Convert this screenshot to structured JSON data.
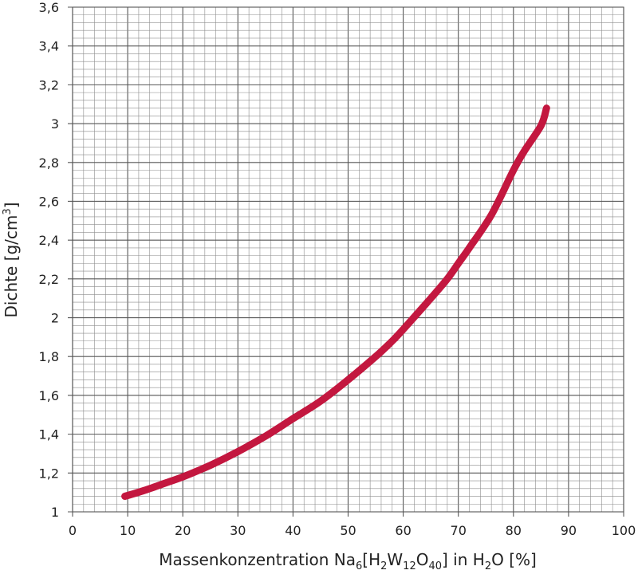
{
  "chart_data": {
    "type": "line",
    "title": "",
    "xlabel": {
      "pre": "Massenkonzentration Na",
      "sub1": "6",
      "mid1": "[H",
      "sub2": "2",
      "mid2": "W",
      "sub3": "12",
      "mid3": "O",
      "sub4": "40",
      "mid4": "] in H",
      "sub5": "2",
      "post": "O [%]"
    },
    "ylabel": {
      "pre": "Dichte [g/cm",
      "sup": "3",
      "post": "]"
    },
    "xlim": [
      0,
      100
    ],
    "ylim": [
      1,
      3.6
    ],
    "grid": true,
    "x_ticks": [
      {
        "value": 0,
        "label": "0"
      },
      {
        "value": 10,
        "label": "10"
      },
      {
        "value": 20,
        "label": "20"
      },
      {
        "value": 30,
        "label": "30"
      },
      {
        "value": 40,
        "label": "40"
      },
      {
        "value": 50,
        "label": "50"
      },
      {
        "value": 60,
        "label": "60"
      },
      {
        "value": 70,
        "label": "70"
      },
      {
        "value": 80,
        "label": "80"
      },
      {
        "value": 90,
        "label": "90"
      },
      {
        "value": 100,
        "label": "100"
      }
    ],
    "y_ticks": [
      {
        "value": 1.0,
        "label": "1"
      },
      {
        "value": 1.2,
        "label": "1,2"
      },
      {
        "value": 1.4,
        "label": "1,4"
      },
      {
        "value": 1.6,
        "label": "1,6"
      },
      {
        "value": 1.8,
        "label": "1,8"
      },
      {
        "value": 2.0,
        "label": "2"
      },
      {
        "value": 2.2,
        "label": "2,2"
      },
      {
        "value": 2.4,
        "label": "2,4"
      },
      {
        "value": 2.6,
        "label": "2,6"
      },
      {
        "value": 2.8,
        "label": "2,8"
      },
      {
        "value": 3.0,
        "label": "3"
      },
      {
        "value": 3.2,
        "label": "3,2"
      },
      {
        "value": 3.4,
        "label": "3,4"
      },
      {
        "value": 3.6,
        "label": "3,6"
      }
    ],
    "series": [
      {
        "color": "#c3173f",
        "x": [
          9.5,
          13,
          17,
          20,
          25,
          30,
          35,
          40,
          45,
          50,
          55,
          58,
          60,
          65,
          68,
          70,
          72,
          76,
          80,
          82,
          85,
          86
        ],
        "y": [
          1.08,
          1.11,
          1.15,
          1.18,
          1.24,
          1.31,
          1.39,
          1.48,
          1.57,
          1.68,
          1.8,
          1.88,
          1.94,
          2.1,
          2.2,
          2.28,
          2.36,
          2.53,
          2.76,
          2.86,
          2.99,
          3.08
        ]
      }
    ]
  }
}
